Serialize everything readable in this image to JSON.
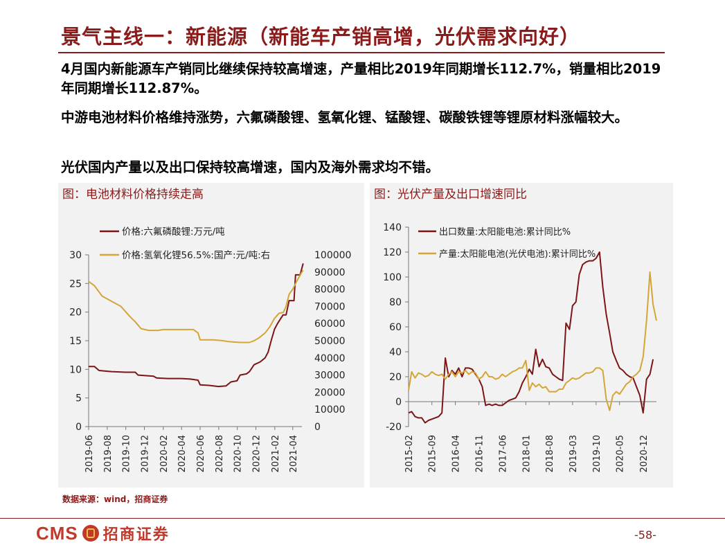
{
  "title": "景气主线一：新能源（新能车产销高增，光伏需求向好）",
  "bullets": [
    "4月国内新能源车产销同比继续保持较高增速，产量相比2019年同期增长112.7%，销量相比2019年同期增长112.87%。",
    "中游电池材料价格维持涨势，六氟磷酸锂、氢氧化锂、锰酸锂、碳酸铁锂等锂原材料涨幅较大。",
    "光伏国内产量以及出口保持较高增速，国内及海外需求均不错。"
  ],
  "source": "数据来源：wind，招商证券",
  "logo": {
    "latin": "CMS",
    "chinese": "招商证券"
  },
  "page_number": "-58-",
  "colors": {
    "brand": "#8B1A1A",
    "series_dark": "#7B1416",
    "series_gold": "#D4A537",
    "panel_bg": "#F2F2F2"
  },
  "chart_data": [
    {
      "type": "line",
      "title": "图：电池材料价格持续走高",
      "x_ticks": [
        "2019-06",
        "2019-08",
        "2019-10",
        "2019-12",
        "2020-02",
        "2020-04",
        "2020-06",
        "2020-08",
        "2020-10",
        "2020-12",
        "2021-02",
        "2021-04"
      ],
      "x_range": [
        "2019-06",
        "2021-05"
      ],
      "left_axis": {
        "range": [
          0,
          30
        ],
        "ticks": [
          0,
          5,
          10,
          15,
          20,
          25,
          30
        ]
      },
      "right_axis": {
        "range": [
          0,
          100000
        ],
        "ticks": [
          0,
          10000,
          20000,
          30000,
          40000,
          50000,
          60000,
          70000,
          80000,
          90000,
          100000
        ]
      },
      "legend_position": "top-left",
      "grid": false,
      "series": [
        {
          "name": "价格:六氟磷酸锂:万元/吨",
          "axis": "left",
          "color": "#7B1416",
          "points": [
            [
              "2019-06-01",
              10.5
            ],
            [
              "2019-06-20",
              10.5
            ],
            [
              "2019-07-05",
              9.8
            ],
            [
              "2019-08-15",
              9.6
            ],
            [
              "2019-10-01",
              9.5
            ],
            [
              "2019-11-01",
              9.5
            ],
            [
              "2019-11-10",
              9.0
            ],
            [
              "2019-12-31",
              8.8
            ],
            [
              "2020-01-10",
              8.5
            ],
            [
              "2020-02-15",
              8.4
            ],
            [
              "2020-03-31",
              8.4
            ],
            [
              "2020-04-30",
              8.3
            ],
            [
              "2020-05-25",
              8.1
            ],
            [
              "2020-06-01",
              7.3
            ],
            [
              "2020-06-30",
              7.2
            ],
            [
              "2020-07-31",
              7.0
            ],
            [
              "2020-08-25",
              7.1
            ],
            [
              "2020-09-10",
              7.8
            ],
            [
              "2020-09-30",
              8.0
            ],
            [
              "2020-10-10",
              9.0
            ],
            [
              "2020-10-31",
              9.2
            ],
            [
              "2020-11-10",
              9.6
            ],
            [
              "2020-11-25",
              10.8
            ],
            [
              "2020-12-15",
              11.3
            ],
            [
              "2020-12-31",
              12.0
            ],
            [
              "2021-01-10",
              13.0
            ],
            [
              "2021-01-20",
              15.0
            ],
            [
              "2021-01-31",
              17.0
            ],
            [
              "2021-02-10",
              18.0
            ],
            [
              "2021-02-28",
              19.5
            ],
            [
              "2021-03-10",
              19.5
            ],
            [
              "2021-03-20",
              22.0
            ],
            [
              "2021-04-05",
              22.0
            ],
            [
              "2021-04-10",
              26.5
            ],
            [
              "2021-04-25",
              26.5
            ],
            [
              "2021-05-05",
              28.5
            ]
          ]
        },
        {
          "name": "价格:氢氧化锂56.5%:国产:元/吨:右",
          "axis": "right",
          "color": "#D4A537",
          "points": [
            [
              "2019-06-01",
              84500
            ],
            [
              "2019-06-20",
              82000
            ],
            [
              "2019-07-15",
              76000
            ],
            [
              "2019-08-15",
              73000
            ],
            [
              "2019-09-15",
              70000
            ],
            [
              "2019-10-15",
              64000
            ],
            [
              "2019-11-01",
              61000
            ],
            [
              "2019-11-20",
              57000
            ],
            [
              "2019-12-15",
              56000
            ],
            [
              "2020-01-15",
              56000
            ],
            [
              "2020-02-01",
              56500
            ],
            [
              "2020-03-01",
              56500
            ],
            [
              "2020-04-15",
              56500
            ],
            [
              "2020-05-10",
              56500
            ],
            [
              "2020-05-25",
              54500
            ],
            [
              "2020-06-01",
              50500
            ],
            [
              "2020-07-15",
              50500
            ],
            [
              "2020-08-15",
              50000
            ],
            [
              "2020-09-01",
              49500
            ],
            [
              "2020-10-10",
              49000
            ],
            [
              "2020-11-10",
              49000
            ],
            [
              "2020-11-25",
              50000
            ],
            [
              "2020-12-10",
              51500
            ],
            [
              "2020-12-31",
              54500
            ],
            [
              "2021-01-15",
              58000
            ],
            [
              "2021-01-31",
              63000
            ],
            [
              "2021-02-15",
              66000
            ],
            [
              "2021-03-01",
              66500
            ],
            [
              "2021-03-10",
              70000
            ],
            [
              "2021-03-20",
              77000
            ],
            [
              "2021-04-01",
              80000
            ],
            [
              "2021-04-15",
              85000
            ],
            [
              "2021-05-01",
              90000
            ],
            [
              "2021-05-05",
              91000
            ]
          ]
        }
      ]
    },
    {
      "type": "line",
      "title": "图：光伏产量及出口增速同比",
      "x_ticks": [
        "2015-02",
        "2015-09",
        "2016-04",
        "2016-11",
        "2017-06",
        "2018-01",
        "2018-08",
        "2019-03",
        "2019-10",
        "2020-05",
        "2020-12"
      ],
      "x_range": [
        "2015-02",
        "2021-04"
      ],
      "y_axis": {
        "range": [
          -20,
          140
        ],
        "ticks": [
          -20,
          0,
          20,
          40,
          60,
          80,
          100,
          120,
          140
        ]
      },
      "legend_position": "top-left",
      "grid": false,
      "series": [
        {
          "name": "出口数量:太阳能电池:累计同比%",
          "color": "#7B1416",
          "points": [
            [
              "2015-02",
              -9
            ],
            [
              "2015-03",
              -8
            ],
            [
              "2015-04",
              -12
            ],
            [
              "2015-05",
              -13
            ],
            [
              "2015-06",
              -13
            ],
            [
              "2015-07",
              -17
            ],
            [
              "2015-08",
              -15
            ],
            [
              "2015-09",
              -14
            ],
            [
              "2015-10",
              -13
            ],
            [
              "2015-11",
              -12
            ],
            [
              "2015-12",
              -9
            ],
            [
              "2016-01",
              35
            ],
            [
              "2016-02",
              20
            ],
            [
              "2016-03",
              25
            ],
            [
              "2016-04",
              22
            ],
            [
              "2016-05",
              27
            ],
            [
              "2016-06",
              20
            ],
            [
              "2016-07",
              27
            ],
            [
              "2016-08",
              27
            ],
            [
              "2016-09",
              26
            ],
            [
              "2016-10",
              22
            ],
            [
              "2016-11",
              18
            ],
            [
              "2016-12",
              12
            ],
            [
              "2017-01",
              -3
            ],
            [
              "2017-02",
              -2
            ],
            [
              "2017-03",
              -3
            ],
            [
              "2017-04",
              -2
            ],
            [
              "2017-05",
              -3
            ],
            [
              "2017-06",
              -3
            ],
            [
              "2017-07",
              -1
            ],
            [
              "2017-08",
              1
            ],
            [
              "2017-09",
              2
            ],
            [
              "2017-10",
              3
            ],
            [
              "2017-11",
              8
            ],
            [
              "2017-12",
              15
            ],
            [
              "2018-01",
              20
            ],
            [
              "2018-02",
              26
            ],
            [
              "2018-03",
              22
            ],
            [
              "2018-04",
              42
            ],
            [
              "2018-05",
              28
            ],
            [
              "2018-06",
              34
            ],
            [
              "2018-07",
              28
            ],
            [
              "2018-08",
              27
            ],
            [
              "2018-09",
              22
            ],
            [
              "2018-10",
              20
            ],
            [
              "2018-11",
              18
            ],
            [
              "2018-12",
              17
            ],
            [
              "2019-01",
              63
            ],
            [
              "2019-02",
              58
            ],
            [
              "2019-03",
              77
            ],
            [
              "2019-04",
              80
            ],
            [
              "2019-05",
              102
            ],
            [
              "2019-06",
              110
            ],
            [
              "2019-07",
              112
            ],
            [
              "2019-08",
              113
            ],
            [
              "2019-09",
              113
            ],
            [
              "2019-10",
              115
            ],
            [
              "2019-11",
              120
            ],
            [
              "2019-12",
              92
            ],
            [
              "2020-01",
              70
            ],
            [
              "2020-02",
              55
            ],
            [
              "2020-03",
              40
            ],
            [
              "2020-04",
              33
            ],
            [
              "2020-05",
              27
            ],
            [
              "2020-06",
              25
            ],
            [
              "2020-07",
              22
            ],
            [
              "2020-08",
              20
            ],
            [
              "2020-09",
              19
            ],
            [
              "2020-10",
              12
            ],
            [
              "2020-11",
              5
            ],
            [
              "2020-12",
              -9
            ],
            [
              "2021-01",
              18
            ],
            [
              "2021-02",
              22
            ],
            [
              "2021-03",
              34
            ]
          ]
        },
        {
          "name": "产量:太阳能电池(光伏电池):累计同比%",
          "color": "#D4A537",
          "points": [
            [
              "2015-02",
              9
            ],
            [
              "2015-03",
              24
            ],
            [
              "2015-04",
              19
            ],
            [
              "2015-05",
              23
            ],
            [
              "2015-06",
              22
            ],
            [
              "2015-07",
              20
            ],
            [
              "2015-08",
              21
            ],
            [
              "2015-09",
              24
            ],
            [
              "2015-10",
              22
            ],
            [
              "2015-11",
              21
            ],
            [
              "2015-12",
              22
            ],
            [
              "2016-01",
              18
            ],
            [
              "2016-02",
              22
            ],
            [
              "2016-03",
              24
            ],
            [
              "2016-04",
              20
            ],
            [
              "2016-05",
              24
            ],
            [
              "2016-06",
              23
            ],
            [
              "2016-07",
              25
            ],
            [
              "2016-08",
              22
            ],
            [
              "2016-09",
              24
            ],
            [
              "2016-10",
              23
            ],
            [
              "2016-11",
              18
            ],
            [
              "2016-12",
              20
            ],
            [
              "2017-01",
              24
            ],
            [
              "2017-02",
              20
            ],
            [
              "2017-03",
              20
            ],
            [
              "2017-04",
              18
            ],
            [
              "2017-05",
              19
            ],
            [
              "2017-06",
              22
            ],
            [
              "2017-07",
              20
            ],
            [
              "2017-08",
              22
            ],
            [
              "2017-09",
              24
            ],
            [
              "2017-10",
              25
            ],
            [
              "2017-11",
              27
            ],
            [
              "2017-12",
              27
            ],
            [
              "2018-01",
              33
            ],
            [
              "2018-02",
              9
            ],
            [
              "2018-03",
              15
            ],
            [
              "2018-04",
              12
            ],
            [
              "2018-05",
              14
            ],
            [
              "2018-06",
              11
            ],
            [
              "2018-07",
              12
            ],
            [
              "2018-08",
              8
            ],
            [
              "2018-09",
              8
            ],
            [
              "2018-10",
              8
            ],
            [
              "2018-11",
              10
            ],
            [
              "2018-12",
              10
            ],
            [
              "2019-01",
              15
            ],
            [
              "2019-02",
              17
            ],
            [
              "2019-03",
              19
            ],
            [
              "2019-04",
              18
            ],
            [
              "2019-05",
              19
            ],
            [
              "2019-06",
              21
            ],
            [
              "2019-07",
              23
            ],
            [
              "2019-08",
              23
            ],
            [
              "2019-09",
              24
            ],
            [
              "2019-10",
              27
            ],
            [
              "2019-11",
              27
            ],
            [
              "2019-12",
              25
            ],
            [
              "2020-01",
              2
            ],
            [
              "2020-02",
              -7
            ],
            [
              "2020-03",
              5
            ],
            [
              "2020-04",
              8
            ],
            [
              "2020-05",
              6
            ],
            [
              "2020-06",
              10
            ],
            [
              "2020-07",
              14
            ],
            [
              "2020-08",
              16
            ],
            [
              "2020-09",
              20
            ],
            [
              "2020-10",
              22
            ],
            [
              "2020-11",
              25
            ],
            [
              "2020-12",
              36
            ],
            [
              "2021-01",
              65
            ],
            [
              "2021-02",
              104
            ],
            [
              "2021-03",
              78
            ],
            [
              "2021-04",
              65
            ]
          ]
        }
      ]
    }
  ]
}
